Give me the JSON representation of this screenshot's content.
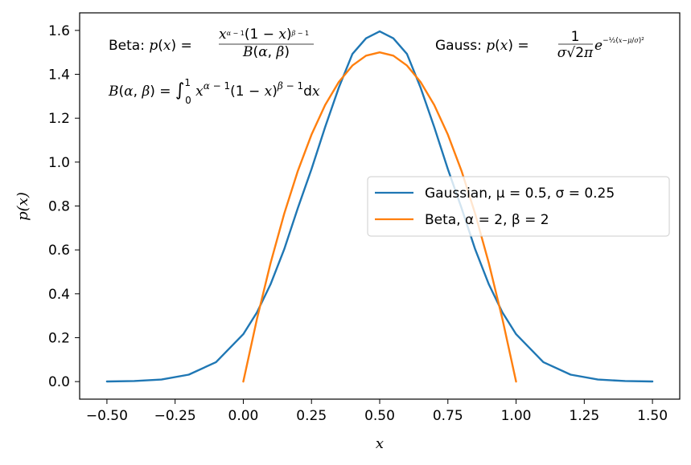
{
  "chart_data": {
    "type": "line",
    "xlabel": "x",
    "ylabel": "p(x)",
    "xlim": [
      -0.6,
      1.6
    ],
    "ylim": [
      -0.08,
      1.68
    ],
    "x_ticks": [
      -0.5,
      -0.25,
      0.0,
      0.25,
      0.5,
      0.75,
      1.0,
      1.25,
      1.5
    ],
    "x_tick_labels": [
      "−0.50",
      "−0.25",
      "0.00",
      "0.25",
      "0.50",
      "0.75",
      "1.00",
      "1.25",
      "1.50"
    ],
    "y_ticks": [
      0.0,
      0.2,
      0.4,
      0.6,
      0.8,
      1.0,
      1.2,
      1.4,
      1.6
    ],
    "y_tick_labels": [
      "0.0",
      "0.2",
      "0.4",
      "0.6",
      "0.8",
      "1.0",
      "1.2",
      "1.4",
      "1.6"
    ],
    "grid": false,
    "legend_position": "center-right",
    "series": [
      {
        "name": "Gaussian, μ = 0.5, σ = 0.25",
        "color": "#1f77b4",
        "x": [
          -0.5,
          -0.4,
          -0.3,
          -0.2,
          -0.1,
          0.0,
          0.05,
          0.1,
          0.15,
          0.2,
          0.25,
          0.3,
          0.35,
          0.4,
          0.45,
          0.5,
          0.55,
          0.6,
          0.65,
          0.7,
          0.75,
          0.8,
          0.85,
          0.9,
          0.95,
          1.0,
          1.1,
          1.2,
          1.3,
          1.4,
          1.5
        ],
        "y": [
          0.0005,
          0.0024,
          0.0095,
          0.0316,
          0.0886,
          0.216,
          0.3151,
          0.4436,
          0.6029,
          0.7908,
          0.9679,
          1.1595,
          1.339,
          1.4928,
          1.5641,
          1.5958,
          1.5641,
          1.4928,
          1.339,
          1.1595,
          0.9679,
          0.7908,
          0.6029,
          0.4436,
          0.3151,
          0.216,
          0.0886,
          0.0316,
          0.0095,
          0.0024,
          0.0005
        ]
      },
      {
        "name": "Beta, α = 2, β = 2",
        "color": "#ff7f0e",
        "x": [
          0.0,
          0.05,
          0.1,
          0.15,
          0.2,
          0.25,
          0.3,
          0.35,
          0.4,
          0.45,
          0.5,
          0.55,
          0.6,
          0.65,
          0.7,
          0.75,
          0.8,
          0.85,
          0.9,
          0.95,
          1.0
        ],
        "y": [
          0.0,
          0.285,
          0.54,
          0.765,
          0.96,
          1.125,
          1.26,
          1.365,
          1.44,
          1.485,
          1.5,
          1.485,
          1.44,
          1.365,
          1.26,
          1.125,
          0.96,
          0.765,
          0.54,
          0.285,
          0.0
        ]
      }
    ],
    "annotations": {
      "beta_label": "Beta:",
      "beta_formula": "p(x) = x^(α−1)(1−x)^(β−1) / B(α,β)",
      "beta_integral": "B(α,β) = ∫₀¹ x^(α−1)(1−x)^(β−1) dx",
      "gauss_label": "Gauss:",
      "gauss_formula": "p(x) = 1/(σ√(2π)) e^(−½((x−μ)/σ)²)"
    }
  }
}
